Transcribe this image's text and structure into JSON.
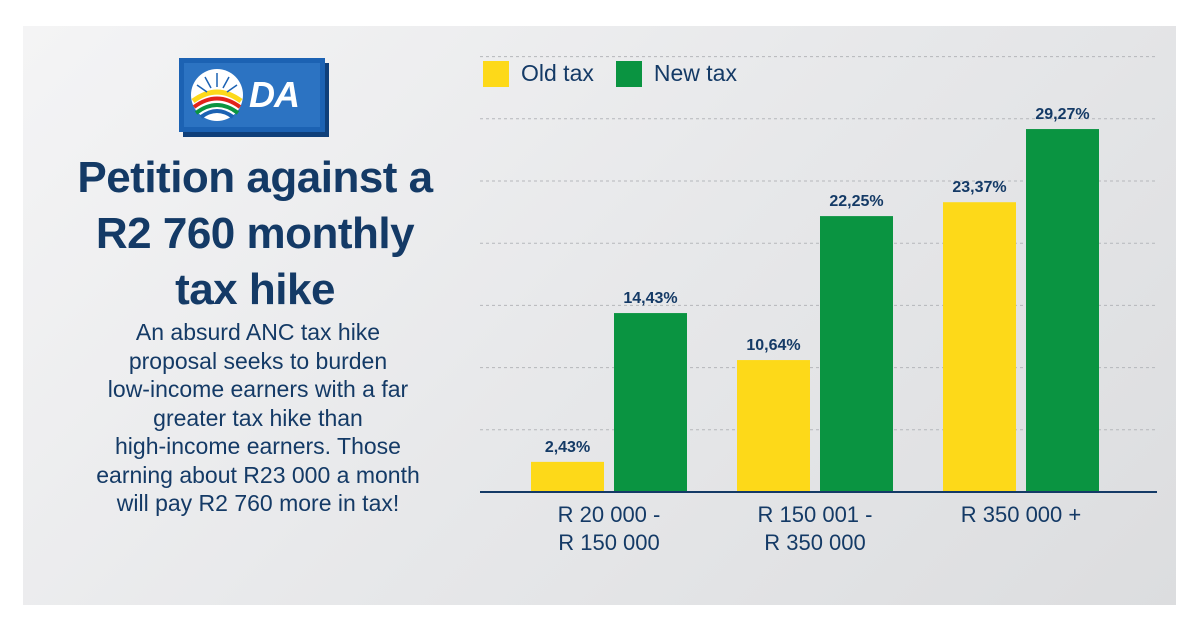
{
  "brand": {
    "logo_text": "DA",
    "colors": {
      "navy": "#143a66",
      "logo_blue": "#2c73c2",
      "old": "#fdd919",
      "new": "#0a9441"
    }
  },
  "headline": "Petition against a\nR2 760 monthly\ntax hike",
  "body": "An absurd ANC tax hike\nproposal seeks to burden\nlow-income earners with a far\ngreater tax hike than\nhigh-income earners. Those\nearning about R23 000 a month\nwill pay R2 760 more in tax!",
  "chart_data": {
    "type": "bar",
    "categories": [
      "R 20 000 -\nR 150 000",
      "R 150 001 -\nR 350 000",
      "R 350 000 +"
    ],
    "series": [
      {
        "name": "Old tax",
        "color": "#fdd919",
        "values": [
          2.43,
          10.64,
          23.37
        ],
        "labels": [
          "2,43%",
          "10,64%",
          "23,37%"
        ]
      },
      {
        "name": "New tax",
        "color": "#0a9441",
        "values": [
          14.43,
          22.25,
          29.27
        ],
        "labels": [
          "14,43%",
          "22,25%",
          "29,27%"
        ]
      }
    ],
    "title": "",
    "xlabel": "",
    "ylabel": "",
    "ylim": [
      0,
      35
    ],
    "grid": true,
    "legend": "top-left"
  }
}
